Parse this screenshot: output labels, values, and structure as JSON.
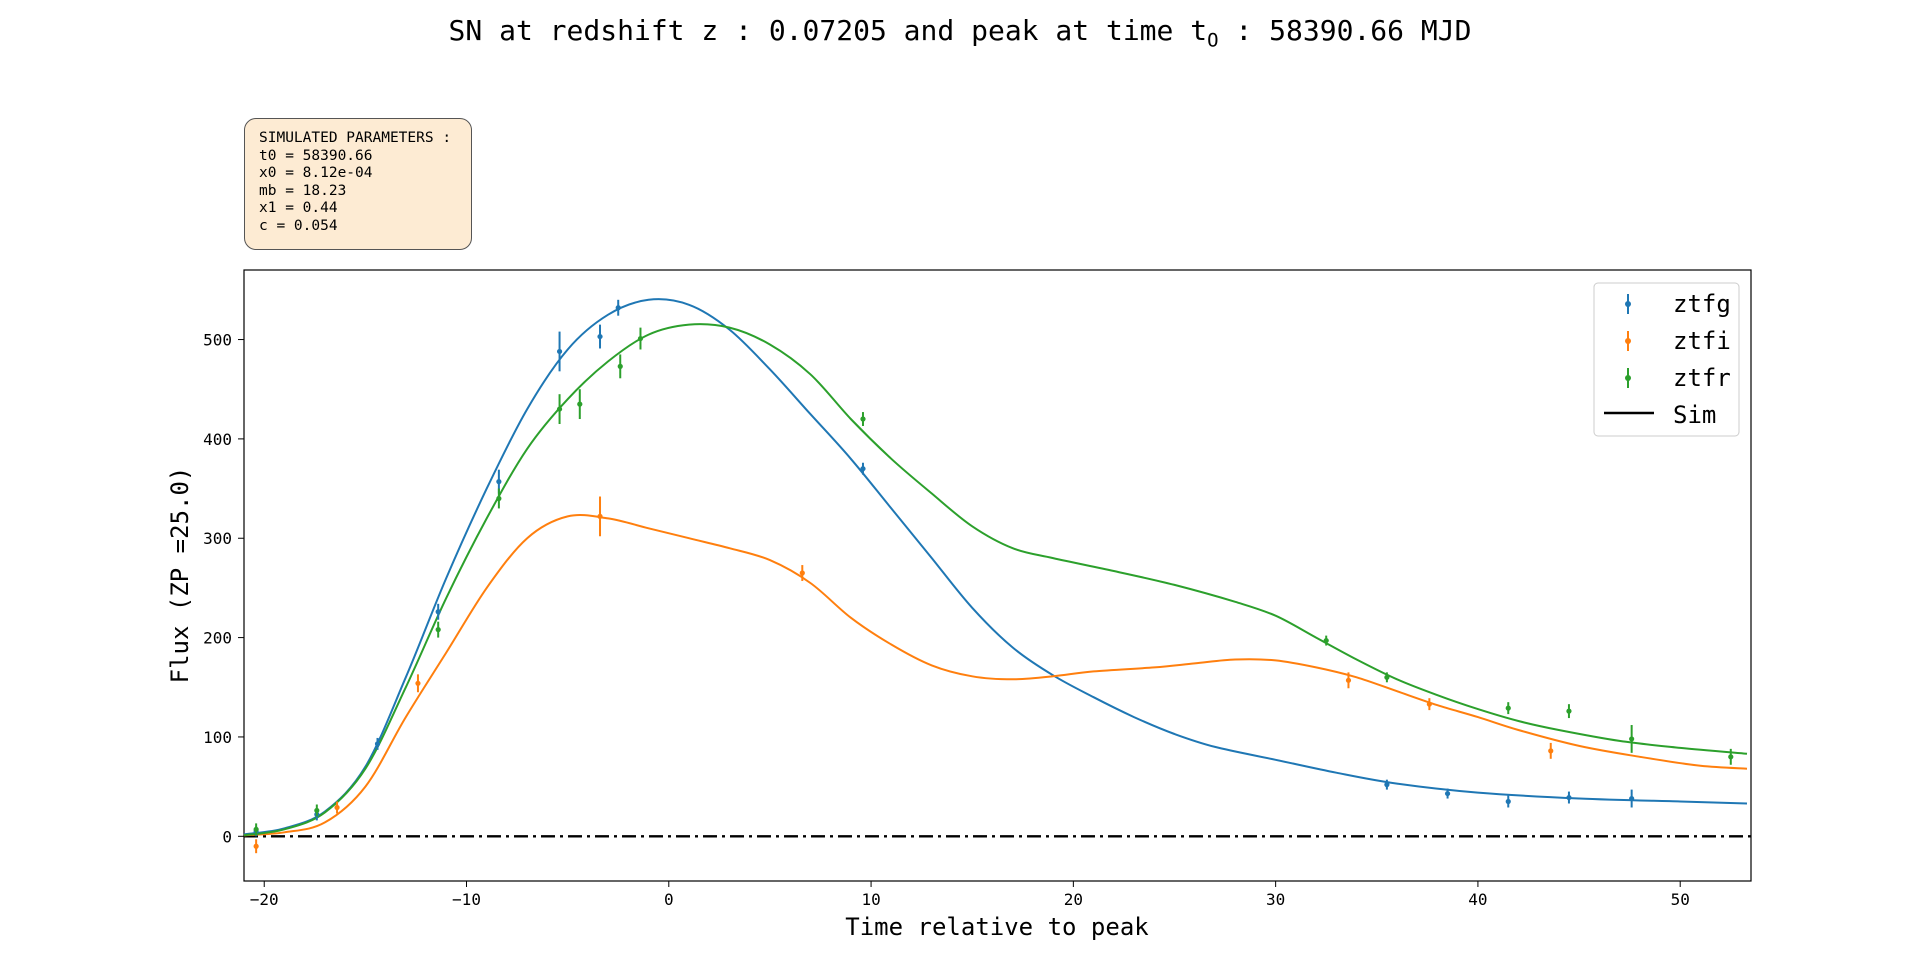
{
  "title": {
    "prefix": "SN at redshift z : 0.07205 and peak at time t",
    "sub": "O",
    "suffix": " : 58390.66 MJD"
  },
  "param_box": {
    "header": "SIMULATED PARAMETERS :",
    "lines": [
      "t0 = 58390.66",
      "x0 = 8.12e-04",
      "mb = 18.23",
      "x1 = 0.44",
      "c = 0.054"
    ]
  },
  "colors": {
    "ztfg": "#1f77b4",
    "ztfi": "#ff7f0e",
    "ztfr": "#2ca02c",
    "sim": "#000000"
  },
  "chart_data": {
    "type": "scatter",
    "xlabel": "Time relative to peak",
    "ylabel": "Flux (ZP =25.0)",
    "xlim": [
      -21,
      53.5
    ],
    "ylim": [
      -45,
      570
    ],
    "xticks": [
      -20,
      -10,
      0,
      10,
      20,
      30,
      40,
      50
    ],
    "yticks": [
      0,
      100,
      200,
      300,
      400,
      500
    ],
    "xtick_labels": [
      "−20",
      "−10",
      "0",
      "10",
      "20",
      "30",
      "40",
      "50"
    ],
    "ytick_labels": [
      "0",
      "100",
      "200",
      "300",
      "400",
      "500"
    ],
    "legend_position": "top-right",
    "legend": [
      "ztfg",
      "ztfi",
      "ztfr",
      "Sim"
    ],
    "zero_line": {
      "name": "Sim",
      "y": 0,
      "style": "dash-dot",
      "color": "#000000"
    },
    "series": [
      {
        "name": "ztfg",
        "color": "#1f77b4",
        "points": [
          {
            "x": -20.4,
            "y": 5,
            "err": 5
          },
          {
            "x": -17.4,
            "y": 22,
            "err": 6
          },
          {
            "x": -14.4,
            "y": 93,
            "err": 6
          },
          {
            "x": -11.4,
            "y": 226,
            "err": 8
          },
          {
            "x": -8.4,
            "y": 357,
            "err": 12
          },
          {
            "x": -5.4,
            "y": 488,
            "err": 20
          },
          {
            "x": -3.4,
            "y": 503,
            "err": 12
          },
          {
            "x": -2.5,
            "y": 532,
            "err": 8
          },
          {
            "x": 9.6,
            "y": 370,
            "err": 6
          },
          {
            "x": 35.5,
            "y": 52,
            "err": 5
          },
          {
            "x": 38.5,
            "y": 43,
            "err": 5
          },
          {
            "x": 41.5,
            "y": 35,
            "err": 6
          },
          {
            "x": 44.5,
            "y": 39,
            "err": 6
          },
          {
            "x": 47.6,
            "y": 38,
            "err": 9
          }
        ],
        "model": [
          [
            -21,
            2
          ],
          [
            -19,
            8
          ],
          [
            -17,
            25
          ],
          [
            -15,
            70
          ],
          [
            -13,
            160
          ],
          [
            -11,
            260
          ],
          [
            -9,
            350
          ],
          [
            -7,
            430
          ],
          [
            -5,
            490
          ],
          [
            -3,
            525
          ],
          [
            -1,
            540
          ],
          [
            1,
            535
          ],
          [
            3,
            510
          ],
          [
            5,
            470
          ],
          [
            7,
            425
          ],
          [
            9,
            380
          ],
          [
            11,
            330
          ],
          [
            13,
            280
          ],
          [
            15,
            230
          ],
          [
            17,
            190
          ],
          [
            19,
            162
          ],
          [
            21,
            140
          ],
          [
            23,
            120
          ],
          [
            25,
            103
          ],
          [
            27,
            90
          ],
          [
            30,
            77
          ],
          [
            33,
            64
          ],
          [
            36,
            53
          ],
          [
            40,
            44
          ],
          [
            45,
            38
          ],
          [
            50,
            35
          ],
          [
            53.3,
            33
          ]
        ]
      },
      {
        "name": "ztfi",
        "color": "#ff7f0e",
        "points": [
          {
            "x": -20.4,
            "y": -10,
            "err": 7
          },
          {
            "x": -16.4,
            "y": 29,
            "err": 6
          },
          {
            "x": -12.4,
            "y": 154,
            "err": 9
          },
          {
            "x": -3.4,
            "y": 322,
            "err": 20
          },
          {
            "x": 6.6,
            "y": 265,
            "err": 8
          },
          {
            "x": 33.6,
            "y": 157,
            "err": 8
          },
          {
            "x": 37.6,
            "y": 133,
            "err": 6
          },
          {
            "x": 43.6,
            "y": 86,
            "err": 8
          }
        ],
        "model": [
          [
            -21,
            1
          ],
          [
            -19,
            4
          ],
          [
            -17,
            14
          ],
          [
            -15,
            50
          ],
          [
            -13,
            120
          ],
          [
            -11,
            185
          ],
          [
            -9,
            250
          ],
          [
            -7,
            300
          ],
          [
            -5,
            322
          ],
          [
            -3,
            320
          ],
          [
            -1,
            310
          ],
          [
            1,
            300
          ],
          [
            3,
            290
          ],
          [
            5,
            278
          ],
          [
            7,
            255
          ],
          [
            9,
            220
          ],
          [
            11,
            193
          ],
          [
            13,
            172
          ],
          [
            15,
            161
          ],
          [
            17,
            158
          ],
          [
            19,
            161
          ],
          [
            21,
            166
          ],
          [
            24,
            170
          ],
          [
            26,
            174
          ],
          [
            28,
            178
          ],
          [
            30,
            177
          ],
          [
            32,
            170
          ],
          [
            34,
            160
          ],
          [
            36,
            146
          ],
          [
            38,
            132
          ],
          [
            40,
            120
          ],
          [
            42,
            107
          ],
          [
            45,
            91
          ],
          [
            48,
            80
          ],
          [
            51,
            71
          ],
          [
            53.3,
            68
          ]
        ]
      },
      {
        "name": "ztfr",
        "color": "#2ca02c",
        "points": [
          {
            "x": -20.4,
            "y": 7,
            "err": 6
          },
          {
            "x": -17.4,
            "y": 26,
            "err": 6
          },
          {
            "x": -11.4,
            "y": 208,
            "err": 8
          },
          {
            "x": -8.4,
            "y": 340,
            "err": 10
          },
          {
            "x": -5.4,
            "y": 430,
            "err": 15
          },
          {
            "x": -4.4,
            "y": 435,
            "err": 15
          },
          {
            "x": -2.4,
            "y": 473,
            "err": 12
          },
          {
            "x": -1.4,
            "y": 501,
            "err": 11
          },
          {
            "x": 9.6,
            "y": 420,
            "err": 7
          },
          {
            "x": 32.5,
            "y": 197,
            "err": 5
          },
          {
            "x": 35.5,
            "y": 160,
            "err": 5
          },
          {
            "x": 41.5,
            "y": 129,
            "err": 6
          },
          {
            "x": 44.5,
            "y": 126,
            "err": 7
          },
          {
            "x": 47.6,
            "y": 98,
            "err": 14
          },
          {
            "x": 52.5,
            "y": 80,
            "err": 8
          }
        ],
        "model": [
          [
            -21,
            1
          ],
          [
            -19,
            7
          ],
          [
            -17,
            24
          ],
          [
            -15,
            68
          ],
          [
            -13,
            150
          ],
          [
            -11,
            240
          ],
          [
            -9,
            320
          ],
          [
            -7,
            390
          ],
          [
            -5,
            440
          ],
          [
            -3,
            478
          ],
          [
            -1,
            505
          ],
          [
            1,
            515
          ],
          [
            3,
            512
          ],
          [
            5,
            495
          ],
          [
            7,
            465
          ],
          [
            9,
            420
          ],
          [
            11,
            380
          ],
          [
            13,
            345
          ],
          [
            15,
            312
          ],
          [
            17,
            290
          ],
          [
            19,
            280
          ],
          [
            22,
            267
          ],
          [
            25,
            253
          ],
          [
            28,
            236
          ],
          [
            30,
            222
          ],
          [
            32,
            200
          ],
          [
            34,
            178
          ],
          [
            36,
            158
          ],
          [
            38,
            142
          ],
          [
            40,
            128
          ],
          [
            42,
            116
          ],
          [
            44,
            107
          ],
          [
            47,
            96
          ],
          [
            50,
            89
          ],
          [
            53.3,
            83
          ]
        ]
      }
    ]
  }
}
